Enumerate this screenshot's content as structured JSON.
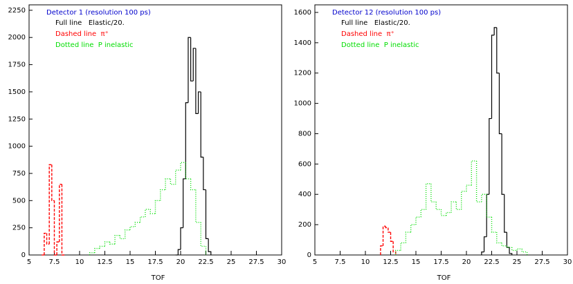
{
  "chart_data": [
    {
      "type": "histogram",
      "title": "Detector 1 (resolution 100 ps)",
      "title_color": "#0000cc",
      "x_label": "TOF",
      "xlim": [
        5,
        30
      ],
      "ylim": [
        0,
        2300
      ],
      "xticks": [
        5,
        7.5,
        10,
        12.5,
        15,
        17.5,
        20,
        22.5,
        25,
        27.5,
        30
      ],
      "yticks": [
        0,
        250,
        500,
        750,
        1000,
        1250,
        1500,
        1750,
        2000,
        2250
      ],
      "series": [
        {
          "name": "Full line   Elastic/20.",
          "color": "#000000",
          "style": "solid",
          "bins": [
            19.5,
            19.75,
            20,
            20.25,
            20.5,
            20.75,
            21,
            21.25,
            21.5,
            21.75,
            22,
            22.25,
            22.5,
            22.75,
            23
          ],
          "values": [
            0,
            50,
            250,
            700,
            1400,
            2000,
            1600,
            1900,
            1300,
            1500,
            900,
            600,
            150,
            30
          ]
        },
        {
          "name": "Dashed line  π⁺",
          "color": "#ff0000",
          "style": "dashed",
          "bins": [
            6.25,
            6.5,
            6.75,
            7,
            7.25,
            7.5,
            7.75,
            8,
            8.25,
            8.5
          ],
          "values": [
            0,
            200,
            100,
            830,
            500,
            0,
            120,
            650,
            0
          ]
        },
        {
          "name": "Dotted line  P inelastic",
          "color": "#00dd00",
          "style": "dotted",
          "bins": [
            11,
            11.5,
            12,
            12.5,
            13,
            13.5,
            14,
            14.5,
            15,
            15.5,
            16,
            16.5,
            17,
            17.5,
            18,
            18.5,
            19,
            19.5,
            20,
            20.5,
            21,
            21.5,
            22,
            22.5
          ],
          "values": [
            20,
            60,
            80,
            120,
            100,
            180,
            150,
            230,
            260,
            300,
            350,
            420,
            380,
            500,
            600,
            700,
            650,
            780,
            850,
            700,
            600,
            300,
            80
          ]
        }
      ]
    },
    {
      "type": "histogram",
      "title": "Detector 12 (resolution 100 ps)",
      "title_color": "#0000cc",
      "x_label": "TOF",
      "xlim": [
        5,
        30
      ],
      "ylim": [
        0,
        1650
      ],
      "xticks": [
        5,
        7.5,
        10,
        12.5,
        15,
        17.5,
        20,
        22.5,
        25,
        27.5,
        30
      ],
      "yticks": [
        0,
        200,
        400,
        600,
        800,
        1000,
        1200,
        1400,
        1600
      ],
      "series": [
        {
          "name": "Full line   Elastic/20.",
          "color": "#000000",
          "style": "solid",
          "bins": [
            21.5,
            21.75,
            22,
            22.25,
            22.5,
            22.75,
            23,
            23.25,
            23.5,
            23.75,
            24,
            24.25,
            24.5
          ],
          "values": [
            20,
            120,
            400,
            900,
            1450,
            1500,
            1200,
            800,
            400,
            150,
            50,
            10
          ]
        },
        {
          "name": "Dashed line  π⁺",
          "color": "#ff0000",
          "style": "dashed",
          "bins": [
            11.5,
            11.75,
            12,
            12.25,
            12.5,
            12.75,
            13
          ],
          "values": [
            60,
            190,
            180,
            150,
            90,
            20
          ]
        },
        {
          "name": "Dotted line  P inelastic",
          "color": "#00dd00",
          "style": "dotted",
          "bins": [
            13,
            13.5,
            14,
            14.5,
            15,
            15.5,
            16,
            16.5,
            17,
            17.5,
            18,
            18.5,
            19,
            19.5,
            20,
            20.5,
            21,
            21.5,
            22,
            22.5,
            23,
            23.5,
            24,
            24.5,
            25,
            25.5,
            26
          ],
          "values": [
            30,
            80,
            150,
            200,
            250,
            300,
            470,
            350,
            300,
            260,
            280,
            350,
            300,
            420,
            460,
            620,
            350,
            400,
            250,
            150,
            80,
            60,
            50,
            30,
            40,
            20
          ]
        }
      ]
    }
  ]
}
